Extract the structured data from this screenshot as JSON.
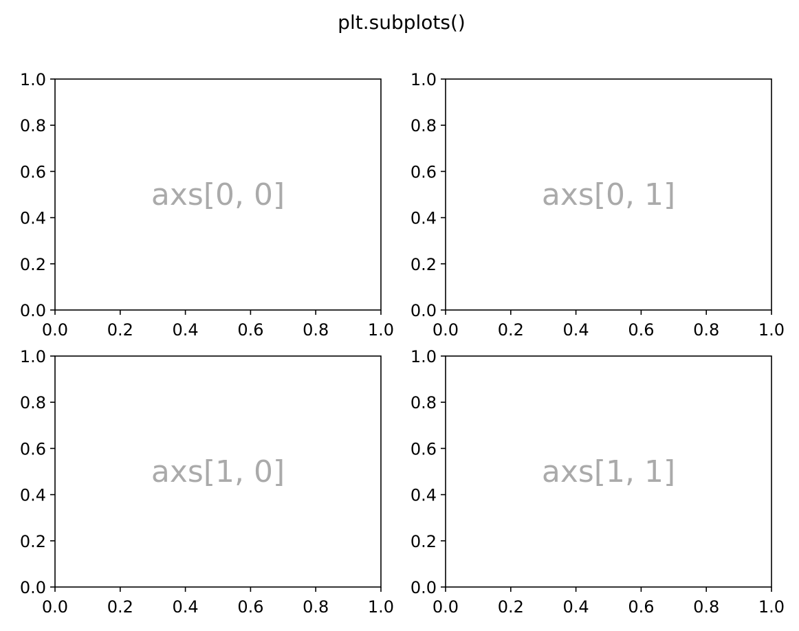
{
  "figure": {
    "suptitle": "plt.subplots()",
    "background": "#ffffff"
  },
  "chart_data": [
    {
      "type": "scatter",
      "label": "axs[0, 0]",
      "label_color": "#aaaaaa",
      "xlim": [
        0.0,
        1.0
      ],
      "ylim": [
        0.0,
        1.0
      ],
      "xticks": [
        "0.0",
        "0.2",
        "0.4",
        "0.6",
        "0.8",
        "1.0"
      ],
      "yticks": [
        "0.0",
        "0.2",
        "0.4",
        "0.6",
        "0.8",
        "1.0"
      ],
      "series": [],
      "grid": false
    },
    {
      "type": "scatter",
      "label": "axs[0, 1]",
      "label_color": "#aaaaaa",
      "xlim": [
        0.0,
        1.0
      ],
      "ylim": [
        0.0,
        1.0
      ],
      "xticks": [
        "0.0",
        "0.2",
        "0.4",
        "0.6",
        "0.8",
        "1.0"
      ],
      "yticks": [
        "0.0",
        "0.2",
        "0.4",
        "0.6",
        "0.8",
        "1.0"
      ],
      "series": [],
      "grid": false
    },
    {
      "type": "scatter",
      "label": "axs[1, 0]",
      "label_color": "#aaaaaa",
      "xlim": [
        0.0,
        1.0
      ],
      "ylim": [
        0.0,
        1.0
      ],
      "xticks": [
        "0.0",
        "0.2",
        "0.4",
        "0.6",
        "0.8",
        "1.0"
      ],
      "yticks": [
        "0.0",
        "0.2",
        "0.4",
        "0.6",
        "0.8",
        "1.0"
      ],
      "series": [],
      "grid": false
    },
    {
      "type": "scatter",
      "label": "axs[1, 1]",
      "label_color": "#aaaaaa",
      "xlim": [
        0.0,
        1.0
      ],
      "ylim": [
        0.0,
        1.0
      ],
      "xticks": [
        "0.0",
        "0.2",
        "0.4",
        "0.6",
        "0.8",
        "1.0"
      ],
      "yticks": [
        "0.0",
        "0.2",
        "0.4",
        "0.6",
        "0.8",
        "1.0"
      ],
      "series": [],
      "grid": false
    }
  ]
}
